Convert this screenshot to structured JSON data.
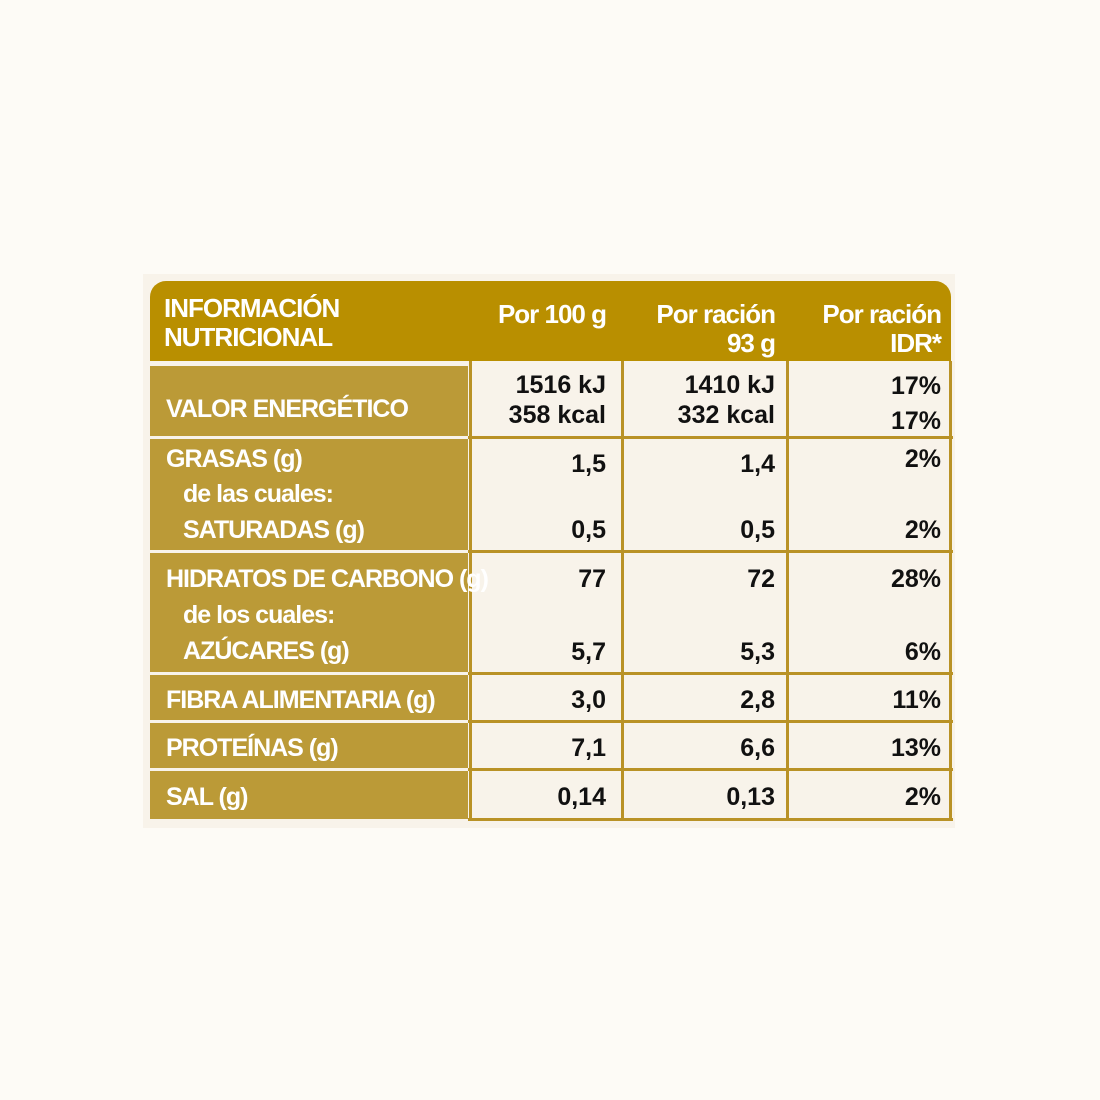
{
  "header": {
    "col1": "INFORMACIÓN\nNUTRICIONAL",
    "col2": "Por 100 g",
    "col3": "Por ración\n93 g",
    "col4": "Por ración\nIDR*"
  },
  "rows": [
    {
      "label": "VALOR ENERGÉTICO",
      "per100": [
        "1516 kJ",
        "358 kcal"
      ],
      "serving": [
        "1410 kJ",
        "332 kcal"
      ],
      "idr": [
        "17%",
        "17%"
      ]
    },
    {
      "label": "GRASAS (g)",
      "sublabel_intro": "de las cuales:",
      "sublabel": "SATURADAS (g)",
      "per100": [
        "1,5",
        "0,5"
      ],
      "serving": [
        "1,4",
        "0,5"
      ],
      "idr": [
        "2%",
        "2%"
      ]
    },
    {
      "label": "HIDRATOS DE CARBONO (g)",
      "sublabel_intro": "de los cuales:",
      "sublabel": "AZÚCARES (g)",
      "per100": [
        "77",
        "5,7"
      ],
      "serving": [
        "72",
        "5,3"
      ],
      "idr": [
        "28%",
        "6%"
      ]
    },
    {
      "label": "FIBRA ALIMENTARIA (g)",
      "per100": [
        "3,0"
      ],
      "serving": [
        "2,8"
      ],
      "idr": [
        "11%"
      ]
    },
    {
      "label": "PROTEÍNAS (g)",
      "per100": [
        "7,1"
      ],
      "serving": [
        "6,6"
      ],
      "idr": [
        "13%"
      ]
    },
    {
      "label": "SAL (g)",
      "per100": [
        "0,14"
      ],
      "serving": [
        "0,13"
      ],
      "idr": [
        "2%"
      ]
    }
  ],
  "colors": {
    "header": "#b98f00",
    "label_column": "#bb9a37",
    "grid": "#b99226",
    "cell_background": "#f8f3ea"
  }
}
